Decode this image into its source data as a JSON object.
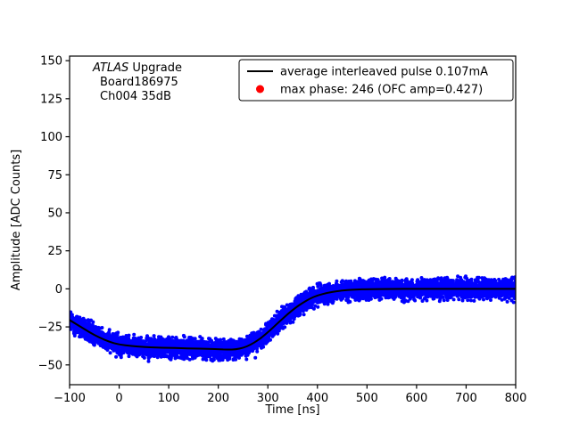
{
  "chart_data": {
    "type": "scatter",
    "title": "",
    "xlabel": "Time [ns]",
    "ylabel": "Amplitude [ADC Counts]",
    "xlim": [
      -100,
      800
    ],
    "ylim": [
      -63,
      153
    ],
    "grid": false,
    "background": "#ffffff",
    "x_ticks": [
      -100,
      0,
      100,
      200,
      300,
      400,
      500,
      600,
      700,
      800
    ],
    "x_tick_labels": [
      "−100",
      "0",
      "100",
      "200",
      "300",
      "400",
      "500",
      "600",
      "700",
      "800"
    ],
    "y_ticks": [
      -50,
      -25,
      0,
      25,
      50,
      75,
      100,
      125,
      150
    ],
    "y_tick_labels": [
      "−50",
      "−25",
      "0",
      "25",
      "50",
      "75",
      "100",
      "125",
      "150"
    ],
    "annotation": {
      "line1_italic": "ATLAS",
      "line1_rest": " Upgrade",
      "line2": "Board186975",
      "line3": "Ch004 35dB"
    },
    "legend": {
      "position": "upper right",
      "entries": [
        {
          "type": "line",
          "color": "#000000",
          "label": "average interleaved pulse 0.107mA"
        },
        {
          "type": "dot",
          "color": "#ff0000",
          "label": "max phase: 246 (OFC amp=0.427)"
        }
      ]
    },
    "series": [
      {
        "name": "interleaved pulse samples",
        "type": "scatter",
        "color": "#0000ff",
        "marker_radius": 2,
        "n_points": 6000,
        "noise_halfwidth": 9,
        "outlier_prob": 0.03,
        "outlier_scale": 1.4,
        "seed": 20461
      },
      {
        "name": "average interleaved pulse",
        "type": "line",
        "color": "#000000",
        "width": 2,
        "points": [
          [
            -100,
            -20.5
          ],
          [
            -80,
            -24.5
          ],
          [
            -60,
            -28.5
          ],
          [
            -40,
            -32
          ],
          [
            -20,
            -34.8
          ],
          [
            0,
            -36.6
          ],
          [
            25,
            -37.6
          ],
          [
            50,
            -38.2
          ],
          [
            75,
            -38.6
          ],
          [
            100,
            -38.8
          ],
          [
            125,
            -39
          ],
          [
            150,
            -39.2
          ],
          [
            175,
            -39.4
          ],
          [
            200,
            -39.7
          ],
          [
            220,
            -39.9
          ],
          [
            235,
            -39.8
          ],
          [
            250,
            -38.8
          ],
          [
            265,
            -36.8
          ],
          [
            280,
            -33.8
          ],
          [
            295,
            -30
          ],
          [
            310,
            -25.6
          ],
          [
            325,
            -21
          ],
          [
            340,
            -16.6
          ],
          [
            355,
            -12.6
          ],
          [
            370,
            -9.2
          ],
          [
            385,
            -6.4
          ],
          [
            400,
            -4.3
          ],
          [
            420,
            -2.6
          ],
          [
            440,
            -1.5
          ],
          [
            460,
            -0.8
          ],
          [
            480,
            -0.4
          ],
          [
            500,
            -0.2
          ],
          [
            550,
            -0.05
          ],
          [
            600,
            0
          ],
          [
            650,
            0
          ],
          [
            700,
            0
          ],
          [
            750,
            0
          ],
          [
            800,
            0
          ]
        ]
      }
    ]
  }
}
